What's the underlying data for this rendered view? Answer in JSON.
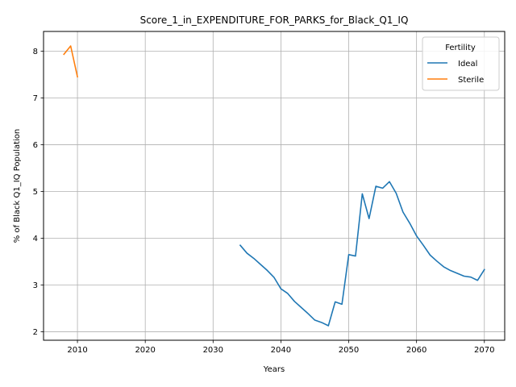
{
  "chart_data": {
    "type": "line",
    "title": "Score_1_in_EXPENDITURE_FOR_PARKS_for_Black_Q1_IQ",
    "xlabel": "Years",
    "ylabel": "% of Black Q1_IQ Population",
    "xlim": [
      2005,
      2073
    ],
    "ylim": [
      1.82,
      8.42
    ],
    "xticks": [
      2010,
      2020,
      2030,
      2040,
      2050,
      2060,
      2070
    ],
    "yticks": [
      2,
      3,
      4,
      5,
      6,
      7,
      8
    ],
    "grid": true,
    "legend": {
      "title": "Fertility",
      "placement": "top-right"
    },
    "series": [
      {
        "name": "Ideal",
        "color": "#1f77b4",
        "x": [
          2034,
          2035,
          2036,
          2037,
          2038,
          2039,
          2040,
          2041,
          2042,
          2043,
          2044,
          2045,
          2046,
          2047,
          2048,
          2049,
          2050,
          2051,
          2052,
          2053,
          2054,
          2055,
          2056,
          2057,
          2058,
          2059,
          2060,
          2061,
          2062,
          2063,
          2064,
          2065,
          2066,
          2067,
          2068,
          2069,
          2070
        ],
        "y": [
          3.85,
          3.68,
          3.57,
          3.44,
          3.31,
          3.16,
          2.92,
          2.82,
          2.65,
          2.52,
          2.39,
          2.25,
          2.2,
          2.13,
          2.64,
          2.59,
          3.65,
          3.62,
          4.95,
          4.42,
          5.11,
          5.07,
          5.21,
          4.96,
          4.56,
          4.32,
          4.05,
          3.85,
          3.64,
          3.51,
          3.39,
          3.31,
          3.25,
          3.19,
          3.17,
          3.1,
          3.33
        ]
      },
      {
        "name": "Sterile",
        "color": "#ff7f0e",
        "x": [
          2008,
          2009,
          2010
        ],
        "y": [
          7.93,
          8.11,
          7.45
        ]
      }
    ]
  }
}
